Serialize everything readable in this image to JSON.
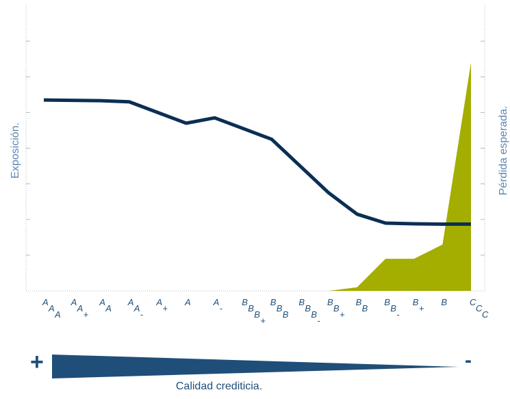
{
  "chart_data": {
    "type": "line",
    "categories": [
      "AAA",
      "AA+",
      "AA",
      "AA-",
      "A+",
      "A",
      "A-",
      "BBB+",
      "BBB",
      "BBB-",
      "BB+",
      "BB",
      "BB-",
      "B+",
      "B",
      "CCC"
    ],
    "y_left_label": "Exposición.",
    "y_right_label": "Pérdida esperada.",
    "series": [
      {
        "axis": "left",
        "values": [
          5.35,
          5.34,
          5.33,
          5.3,
          5.0,
          4.7,
          4.85,
          4.55,
          4.25,
          3.5,
          2.75,
          2.15,
          1.9,
          1.88,
          1.87,
          1.87
        ]
      },
      {
        "axis": "right",
        "values": [
          0,
          0,
          0,
          0,
          0,
          0,
          0,
          0,
          0,
          0,
          0,
          0.05,
          0.45,
          0.45,
          0.65,
          3.2
        ]
      }
    ],
    "ylim_left": [
      0,
      8
    ],
    "ylim_right": [
      0,
      4
    ]
  },
  "colors": {
    "line": "#0a2f54",
    "area": "#a3ae00",
    "gradient": "#1f4e79",
    "axis": "#b0b7bf"
  },
  "footer": {
    "plus": "+",
    "minus": "-",
    "label": "Calidad crediticia."
  }
}
